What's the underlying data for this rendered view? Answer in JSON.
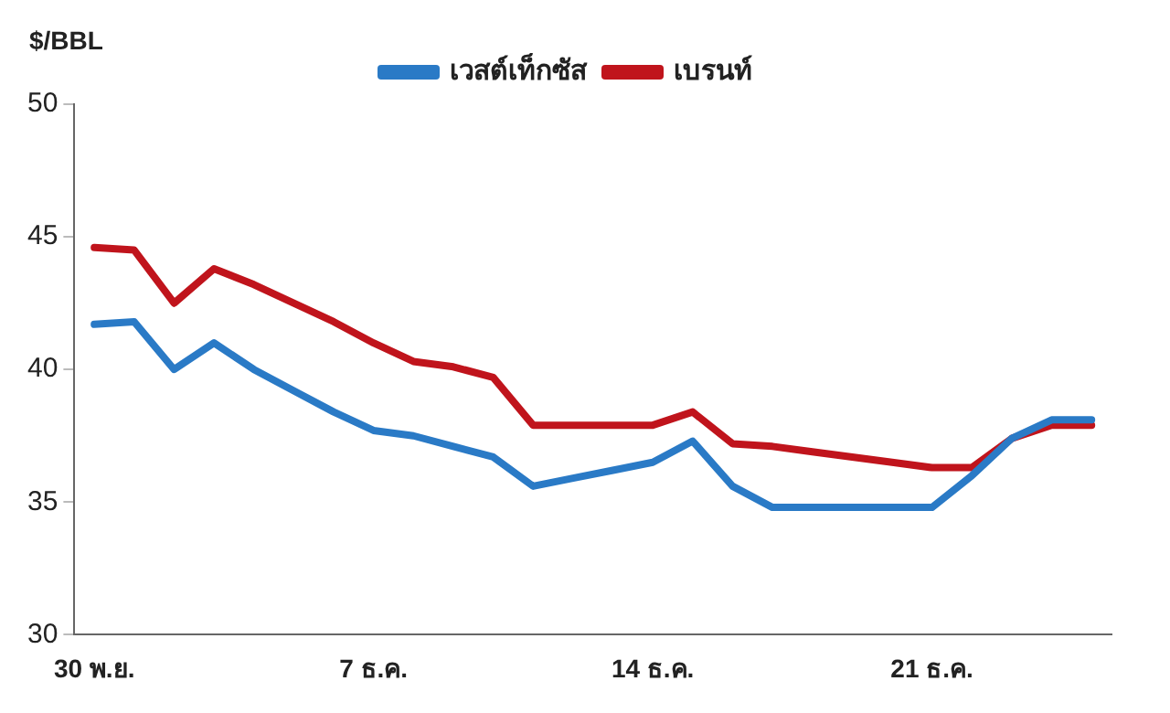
{
  "chart_data": {
    "type": "line",
    "ylabel": "$/BBL",
    "categories": [
      "30 พ.ย.",
      null,
      null,
      null,
      null,
      null,
      null,
      "7 ธ.ค.",
      null,
      null,
      null,
      null,
      null,
      null,
      "14 ธ.ค.",
      null,
      null,
      null,
      null,
      null,
      null,
      "21 ธ.ค.",
      null,
      null,
      null,
      null
    ],
    "series": [
      {
        "name": "เวสต์เท็กซัส",
        "color": "#2a7ac6",
        "values": [
          41.7,
          41.8,
          40.0,
          41.0,
          40.0,
          39.2,
          38.4,
          37.7,
          37.5,
          37.1,
          36.7,
          35.6,
          35.9,
          36.2,
          36.5,
          37.3,
          35.6,
          34.8,
          34.8,
          34.8,
          34.8,
          34.8,
          36.0,
          37.4,
          38.1,
          38.1
        ]
      },
      {
        "name": "เบรนท์",
        "color": "#c0141c",
        "values": [
          44.6,
          44.5,
          42.5,
          43.8,
          43.2,
          42.5,
          41.8,
          41.0,
          40.3,
          40.1,
          39.7,
          37.9,
          37.9,
          37.9,
          37.9,
          38.4,
          37.2,
          37.1,
          36.9,
          36.7,
          36.5,
          36.3,
          36.3,
          37.4,
          37.9,
          37.9
        ]
      }
    ],
    "ylim": [
      30,
      50
    ],
    "yticks": [
      30,
      35,
      40,
      45,
      50
    ],
    "grid": false,
    "legend": "top",
    "marker": "none",
    "line_style": "solid"
  }
}
